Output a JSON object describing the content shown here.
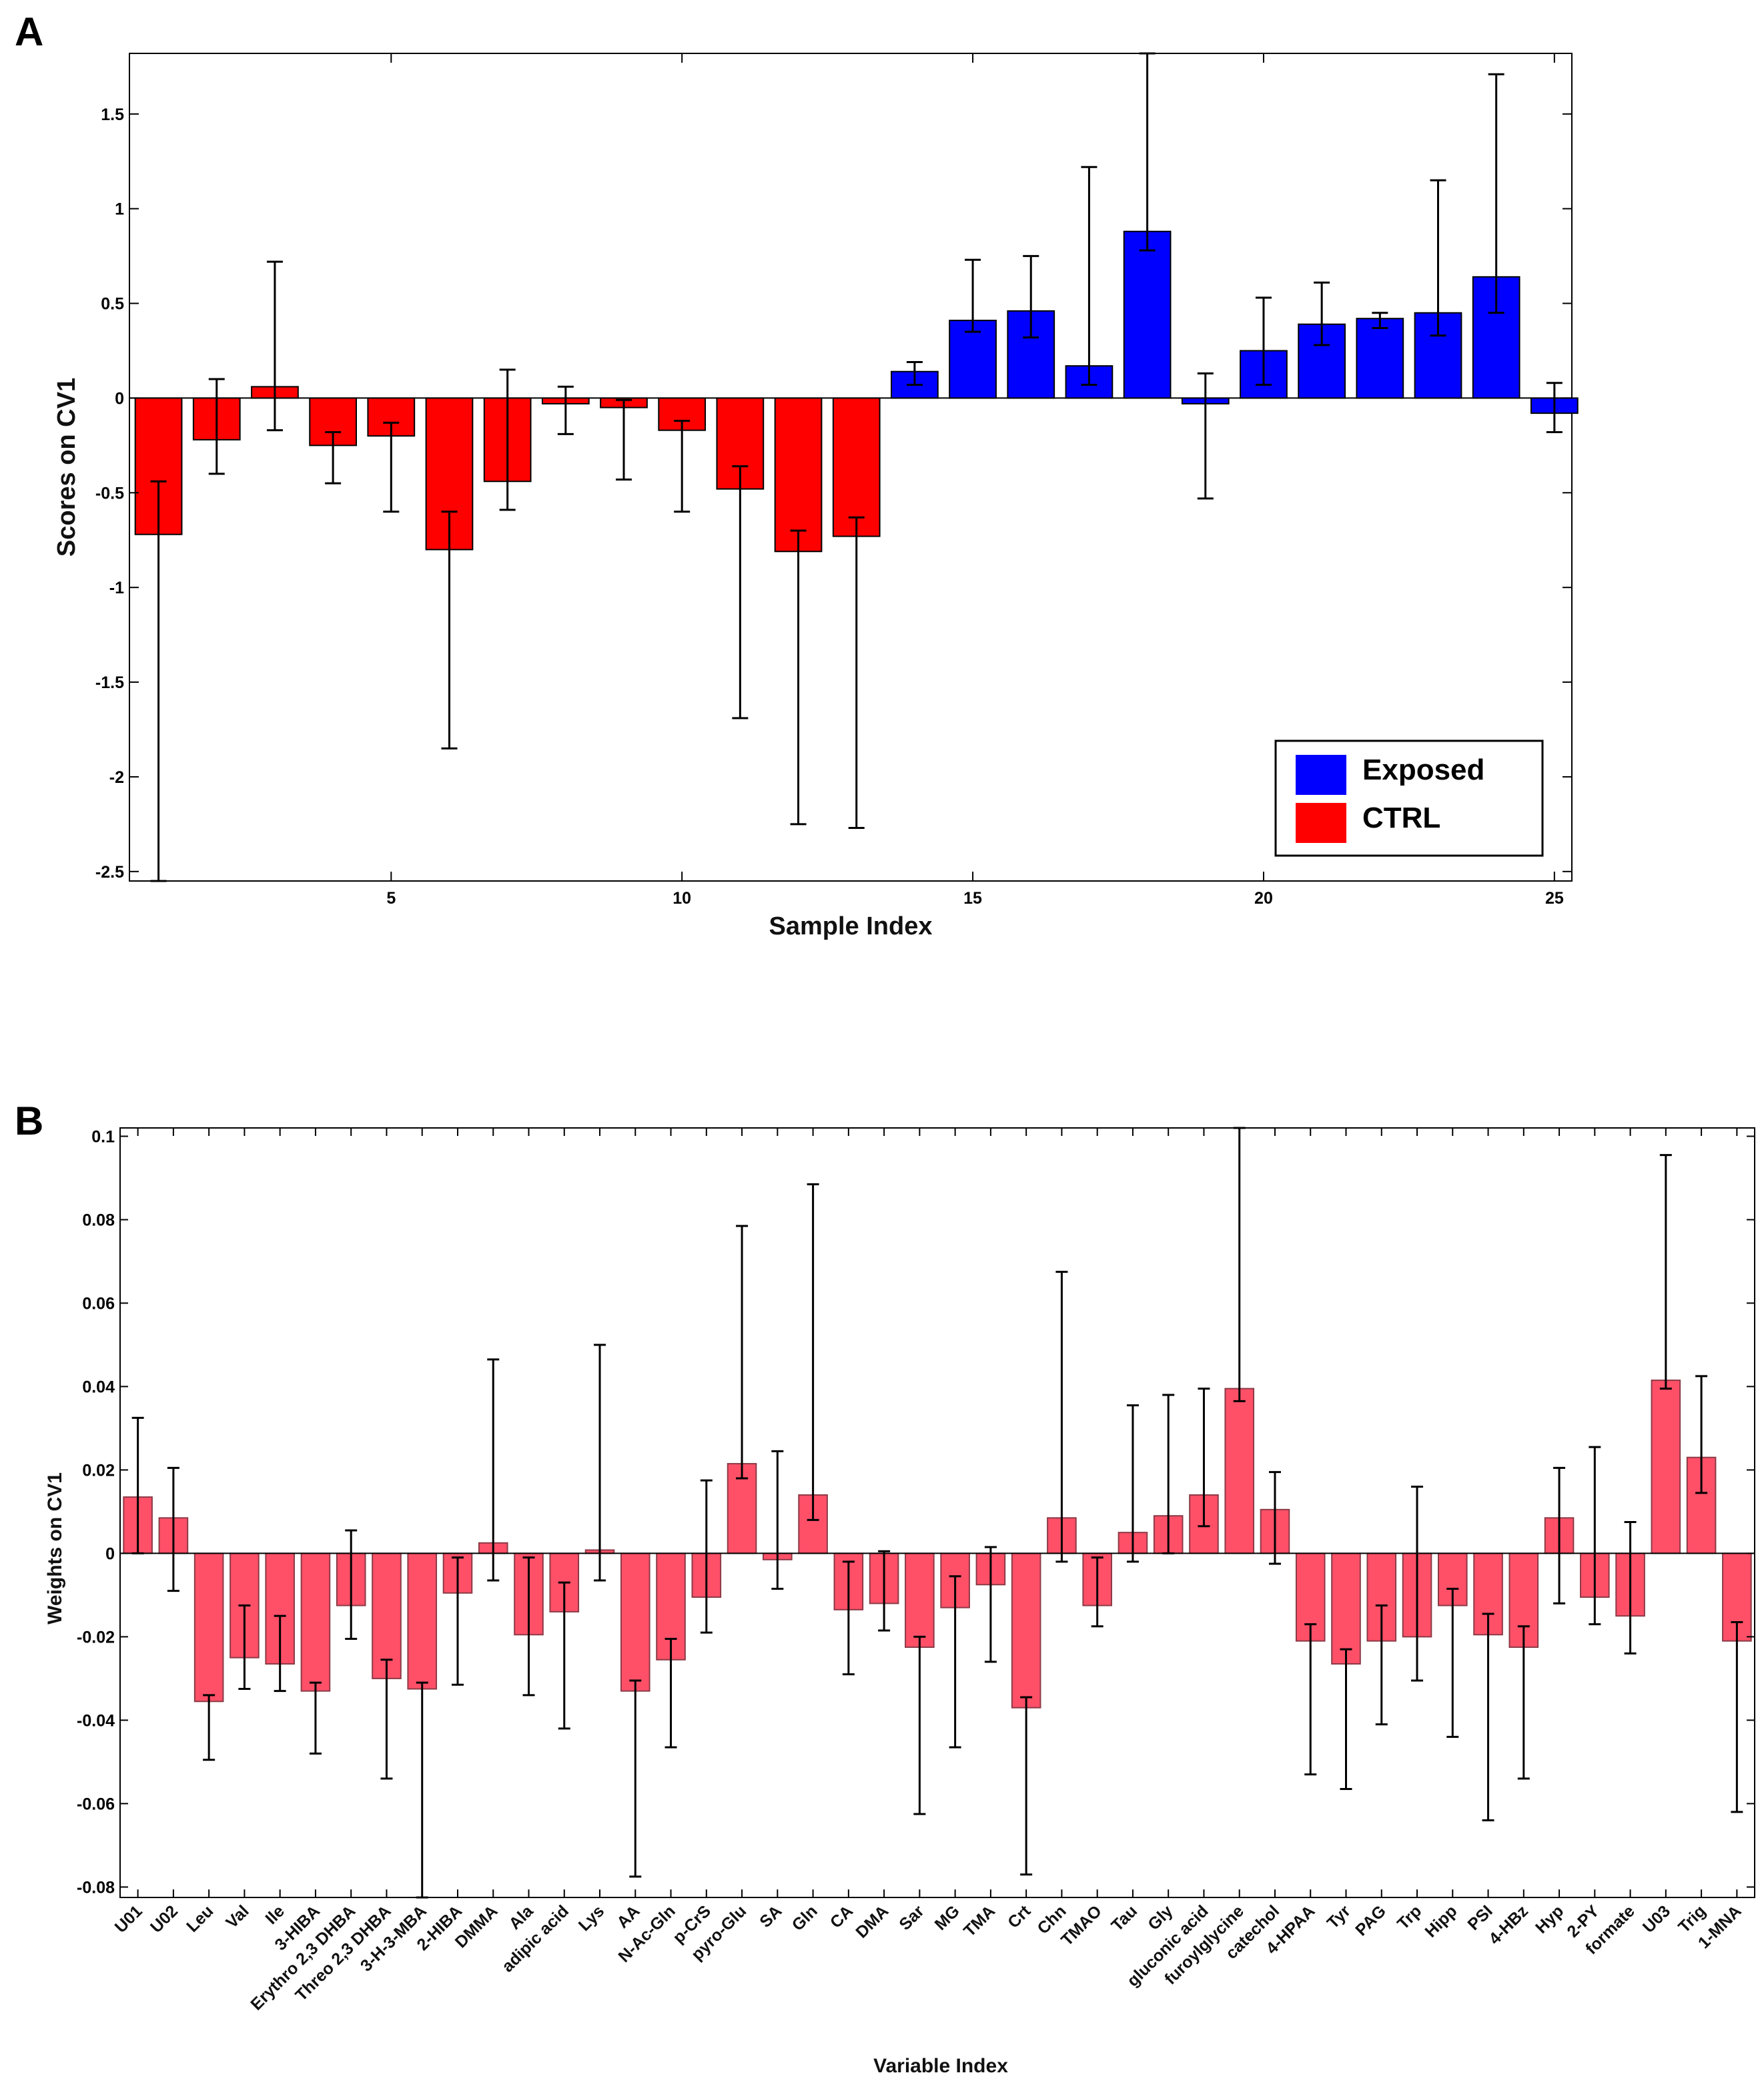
{
  "chart_data": [
    {
      "panel": "A",
      "type": "bar",
      "xlabel": "Sample Index",
      "ylabel": "Scores on CV1",
      "xlim": [
        0.5,
        25.3
      ],
      "ylim": [
        -2.55,
        1.82
      ],
      "xticks": [
        5,
        10,
        15,
        20,
        25
      ],
      "yticks": [
        1.5,
        1,
        0.5,
        0,
        -0.5,
        -1,
        -1.5,
        -2,
        -2.5
      ],
      "colors": {
        "Exposed": "#0000ff",
        "CTRL": "#ff0000"
      },
      "legend": [
        {
          "label": "Exposed",
          "group": "Exposed"
        },
        {
          "label": "CTRL",
          "group": "CTRL"
        }
      ],
      "bars": [
        {
          "x": 1,
          "value": -0.72,
          "err_low": -2.55,
          "err_high": -0.44,
          "group": "CTRL"
        },
        {
          "x": 2,
          "value": -0.22,
          "err_low": -0.4,
          "err_high": 0.1,
          "group": "CTRL"
        },
        {
          "x": 3,
          "value": 0.06,
          "err_low": -0.17,
          "err_high": 0.72,
          "group": "CTRL"
        },
        {
          "x": 4,
          "value": -0.25,
          "err_low": -0.45,
          "err_high": -0.18,
          "group": "CTRL"
        },
        {
          "x": 5,
          "value": -0.2,
          "err_low": -0.6,
          "err_high": -0.13,
          "group": "CTRL"
        },
        {
          "x": 6,
          "value": -0.8,
          "err_low": -1.85,
          "err_high": -0.6,
          "group": "CTRL"
        },
        {
          "x": 7,
          "value": -0.44,
          "err_low": -0.59,
          "err_high": 0.15,
          "group": "CTRL"
        },
        {
          "x": 8,
          "value": -0.03,
          "err_low": -0.19,
          "err_high": 0.06,
          "group": "CTRL"
        },
        {
          "x": 9,
          "value": -0.05,
          "err_low": -0.43,
          "err_high": -0.01,
          "group": "CTRL"
        },
        {
          "x": 10,
          "value": -0.17,
          "err_low": -0.6,
          "err_high": -0.12,
          "group": "CTRL"
        },
        {
          "x": 11,
          "value": -0.48,
          "err_low": -1.69,
          "err_high": -0.36,
          "group": "CTRL"
        },
        {
          "x": 12,
          "value": -0.81,
          "err_low": -2.25,
          "err_high": -0.7,
          "group": "CTRL"
        },
        {
          "x": 13,
          "value": -0.73,
          "err_low": -2.27,
          "err_high": -0.63,
          "group": "CTRL"
        },
        {
          "x": 14,
          "value": 0.14,
          "err_low": 0.07,
          "err_high": 0.19,
          "group": "Exposed"
        },
        {
          "x": 15,
          "value": 0.41,
          "err_low": 0.35,
          "err_high": 0.73,
          "group": "Exposed"
        },
        {
          "x": 16,
          "value": 0.46,
          "err_low": 0.32,
          "err_high": 0.75,
          "group": "Exposed"
        },
        {
          "x": 17,
          "value": 0.17,
          "err_low": 0.07,
          "err_high": 1.22,
          "group": "Exposed"
        },
        {
          "x": 18,
          "value": 0.88,
          "err_low": 0.78,
          "err_high": 1.82,
          "group": "Exposed"
        },
        {
          "x": 19,
          "value": -0.03,
          "err_low": -0.53,
          "err_high": 0.13,
          "group": "Exposed"
        },
        {
          "x": 20,
          "value": 0.25,
          "err_low": 0.07,
          "err_high": 0.53,
          "group": "Exposed"
        },
        {
          "x": 21,
          "value": 0.39,
          "err_low": 0.28,
          "err_high": 0.61,
          "group": "Exposed"
        },
        {
          "x": 22,
          "value": 0.42,
          "err_low": 0.37,
          "err_high": 0.45,
          "group": "Exposed"
        },
        {
          "x": 23,
          "value": 0.45,
          "err_low": 0.33,
          "err_high": 1.15,
          "group": "Exposed"
        },
        {
          "x": 24,
          "value": 0.64,
          "err_low": 0.45,
          "err_high": 1.71,
          "group": "Exposed"
        },
        {
          "x": 25,
          "value": -0.08,
          "err_low": -0.18,
          "err_high": 0.08,
          "group": "Exposed"
        }
      ]
    },
    {
      "panel": "B",
      "type": "bar",
      "xlabel": "Variable Index",
      "ylabel": "Weights on CV1",
      "ylim": [
        -0.0825,
        0.102
      ],
      "yticks": [
        0.1,
        0.08,
        0.06,
        0.04,
        0.02,
        0,
        -0.02,
        -0.04,
        -0.06,
        -0.08
      ],
      "ytick_labels": [
        "0.1",
        "0.08",
        "0.06",
        "0.04",
        "0.02",
        "0",
        "-0.02",
        "-0.04",
        "-0.06",
        "-0.08"
      ],
      "bar_color": "#ff5068",
      "bar_stroke": "#8c3a46",
      "bars": [
        {
          "label": "U01",
          "value": 0.0135,
          "err_low": 0.0,
          "err_high": 0.0325
        },
        {
          "label": "U02",
          "value": 0.0085,
          "err_low": -0.009,
          "err_high": 0.0205
        },
        {
          "label": "Leu",
          "value": -0.0355,
          "err_low": -0.0495,
          "err_high": -0.034
        },
        {
          "label": "Val",
          "value": -0.025,
          "err_low": -0.0325,
          "err_high": -0.0125
        },
        {
          "label": "Ile",
          "value": -0.0265,
          "err_low": -0.033,
          "err_high": -0.015
        },
        {
          "label": "3-HIBA",
          "value": -0.033,
          "err_low": -0.048,
          "err_high": -0.031
        },
        {
          "label": "Erythro 2,3 DHBA",
          "value": -0.0125,
          "err_low": -0.0205,
          "err_high": 0.0055
        },
        {
          "label": "Threo 2,3 DHBA",
          "value": -0.03,
          "err_low": -0.054,
          "err_high": -0.0255
        },
        {
          "label": "3-H-3-MBA",
          "value": -0.0325,
          "err_low": -0.0825,
          "err_high": -0.031
        },
        {
          "label": "2-HIBA",
          "value": -0.0095,
          "err_low": -0.0315,
          "err_high": -0.001
        },
        {
          "label": "DMMA",
          "value": 0.0025,
          "err_low": -0.0065,
          "err_high": 0.0465
        },
        {
          "label": "Ala",
          "value": -0.0195,
          "err_low": -0.034,
          "err_high": -0.001
        },
        {
          "label": "adipic acid",
          "value": -0.014,
          "err_low": -0.042,
          "err_high": -0.007
        },
        {
          "label": "Lys",
          "value": 0.0008,
          "err_low": -0.0065,
          "err_high": 0.05
        },
        {
          "label": "AA",
          "value": -0.033,
          "err_low": -0.0775,
          "err_high": -0.0305
        },
        {
          "label": "N-Ac-Gln",
          "value": -0.0255,
          "err_low": -0.0465,
          "err_high": -0.0205
        },
        {
          "label": "p-CrS",
          "value": -0.0105,
          "err_low": -0.019,
          "err_high": 0.0175
        },
        {
          "label": "pyro-Glu",
          "value": 0.0215,
          "err_low": 0.018,
          "err_high": 0.0785
        },
        {
          "label": "SA",
          "value": -0.0015,
          "err_low": -0.0085,
          "err_high": 0.0245
        },
        {
          "label": "Gln",
          "value": 0.014,
          "err_low": 0.008,
          "err_high": 0.0885
        },
        {
          "label": "CA",
          "value": -0.0135,
          "err_low": -0.029,
          "err_high": -0.002
        },
        {
          "label": "DMA",
          "value": -0.012,
          "err_low": -0.0185,
          "err_high": 0.0005
        },
        {
          "label": "Sar",
          "value": -0.0225,
          "err_low": -0.0625,
          "err_high": -0.02
        },
        {
          "label": "MG",
          "value": -0.013,
          "err_low": -0.0465,
          "err_high": -0.0055
        },
        {
          "label": "TMA",
          "value": -0.0075,
          "err_low": -0.026,
          "err_high": 0.0015
        },
        {
          "label": "Crt",
          "value": -0.037,
          "err_low": -0.077,
          "err_high": -0.0345
        },
        {
          "label": "Chn",
          "value": 0.0085,
          "err_low": -0.002,
          "err_high": 0.0675
        },
        {
          "label": "TMAO",
          "value": -0.0125,
          "err_low": -0.0175,
          "err_high": -0.001
        },
        {
          "label": "Tau",
          "value": 0.005,
          "err_low": -0.002,
          "err_high": 0.0355
        },
        {
          "label": "Gly",
          "value": 0.009,
          "err_low": 0.0,
          "err_high": 0.038
        },
        {
          "label": "gluconic acid",
          "value": 0.014,
          "err_low": 0.0065,
          "err_high": 0.0395
        },
        {
          "label": "furoylglycine",
          "value": 0.0395,
          "err_low": 0.0365,
          "err_high": 0.102
        },
        {
          "label": "catechol",
          "value": 0.0105,
          "err_low": -0.0025,
          "err_high": 0.0195
        },
        {
          "label": "4-HPAA",
          "value": -0.021,
          "err_low": -0.053,
          "err_high": -0.017
        },
        {
          "label": "Tyr",
          "value": -0.0265,
          "err_low": -0.0565,
          "err_high": -0.023
        },
        {
          "label": "PAG",
          "value": -0.021,
          "err_low": -0.041,
          "err_high": -0.0125
        },
        {
          "label": "Trp",
          "value": -0.02,
          "err_low": -0.0305,
          "err_high": 0.016
        },
        {
          "label": "Hipp",
          "value": -0.0125,
          "err_low": -0.044,
          "err_high": -0.0085
        },
        {
          "label": "PSI",
          "value": -0.0195,
          "err_low": -0.064,
          "err_high": -0.0145
        },
        {
          "label": "4-HBz",
          "value": -0.0225,
          "err_low": -0.054,
          "err_high": -0.0175
        },
        {
          "label": "Hyp",
          "value": 0.0085,
          "err_low": -0.012,
          "err_high": 0.0205
        },
        {
          "label": "2-PY",
          "value": -0.0105,
          "err_low": -0.017,
          "err_high": 0.0255
        },
        {
          "label": "formate",
          "value": -0.015,
          "err_low": -0.024,
          "err_high": 0.0075
        },
        {
          "label": "U03",
          "value": 0.0415,
          "err_low": 0.0395,
          "err_high": 0.0955
        },
        {
          "label": "Trig",
          "value": 0.023,
          "err_low": 0.0145,
          "err_high": 0.0425
        },
        {
          "label": "1-MNA",
          "value": -0.021,
          "err_low": -0.062,
          "err_high": -0.0165
        }
      ]
    }
  ]
}
